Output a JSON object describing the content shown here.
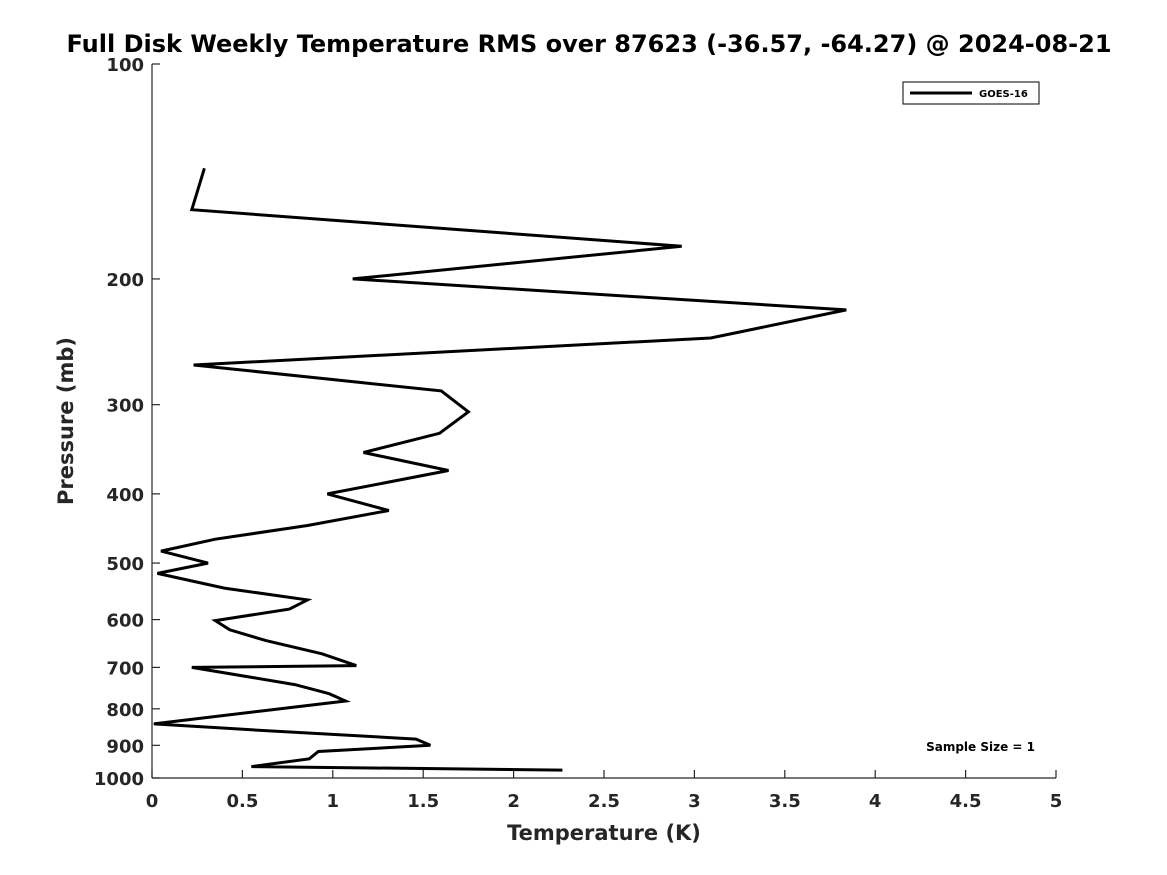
{
  "chart_data": {
    "type": "line",
    "title": "Full Disk Weekly Temperature RMS over 87623 (-36.57, -64.27) @ 2024-08-21",
    "xlabel": "Temperature (K)",
    "ylabel": "Pressure (mb)",
    "xlim": [
      0,
      5
    ],
    "ylim": [
      100,
      1000
    ],
    "y_scale": "log",
    "y_reversed": true,
    "grid": false,
    "x_ticks": [
      "0",
      "0.5",
      "1",
      "1.5",
      "2",
      "2.5",
      "3",
      "3.5",
      "4",
      "4.5",
      "5"
    ],
    "y_ticks": [
      "100",
      "200",
      "300",
      "400",
      "500",
      "600",
      "700",
      "800",
      "900",
      "1000"
    ],
    "legend": {
      "position": "top-right",
      "entries": [
        "GOES-16"
      ]
    },
    "annotation": "Sample Size = 1",
    "series": [
      {
        "name": "GOES-16",
        "color": "#000000",
        "x": [
          0.29,
          0.22,
          2.93,
          1.11,
          3.84,
          3.09,
          0.23,
          1.6,
          1.75,
          1.59,
          1.17,
          1.64,
          0.97,
          1.31,
          0.86,
          0.35,
          0.05,
          0.31,
          0.03,
          0.4,
          0.86,
          0.76,
          0.35,
          0.43,
          0.63,
          0.94,
          1.13,
          0.22,
          0.79,
          0.98,
          1.07,
          0.6,
          0.01,
          0.55,
          1.46,
          1.54,
          0.92,
          0.87,
          0.55,
          2.27
        ],
        "y": [
          140,
          160,
          180,
          200,
          221,
          242,
          264,
          287,
          307,
          329,
          350,
          371,
          400,
          422,
          443,
          463,
          481,
          500,
          517,
          542,
          563,
          580,
          602,
          620,
          642,
          670,
          696,
          700,
          740,
          762,
          780,
          806,
          840,
          856,
          882,
          900,
          918,
          940,
          964,
          975
        ]
      }
    ]
  }
}
